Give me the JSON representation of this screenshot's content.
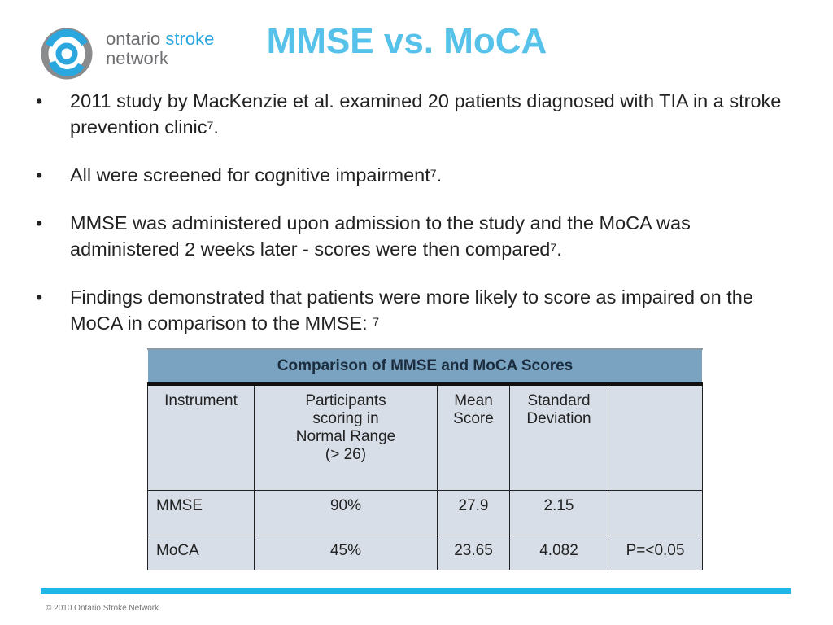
{
  "logo": {
    "icon": "ontario-stroke-network-logo-icon",
    "line1_a": "ontario",
    "line1_b": "stroke",
    "line2": "network",
    "colors": {
      "blue": "#2aa7df",
      "gray": "#8a8b8d"
    }
  },
  "title": "MMSE vs. MoCA",
  "bullets": [
    {
      "text": "2011 study by MacKenzie et al. examined 20 patients diagnosed with TIA in a stroke prevention clinic",
      "sup": "7",
      "after": "."
    },
    {
      "text": "All were screened for cognitive impairment",
      "sup": "7",
      "after": "."
    },
    {
      "text": "MMSE was administered upon admission to the study and the MoCA was administered 2 weeks later - scores were then compared",
      "sup": "7",
      "after": "."
    },
    {
      "text": "Findings demonstrated that patients were more likely to score as impaired on the MoCA  in comparison to the MMSE: ",
      "sup": "7",
      "after": ""
    }
  ],
  "bullet_char": "•",
  "table": {
    "caption": "Comparison of MMSE and MoCA Scores",
    "headers": [
      "Instrument",
      "Participants scoring in Normal Range (> 26)",
      "Mean Score",
      "Standard Deviation",
      ""
    ],
    "header_lines": {
      "participants": [
        "Participants",
        "scoring in",
        "Normal Range",
        "(> 26)"
      ],
      "mean": [
        "Mean",
        "Score"
      ],
      "sd": [
        "Standard",
        "Deviation"
      ]
    },
    "rows": [
      [
        "MMSE",
        "90%",
        "27.9",
        "2.15",
        ""
      ],
      [
        "MoCA",
        "45%",
        "23.65",
        "4.082",
        "P=<0.05"
      ]
    ]
  },
  "footer": "© 2010 Ontario Stroke Network",
  "colors": {
    "title": "#56c2ea",
    "rule": "#1eb7e8",
    "table_header": "#7aa3c1",
    "table_cell": "#d7dee8"
  }
}
